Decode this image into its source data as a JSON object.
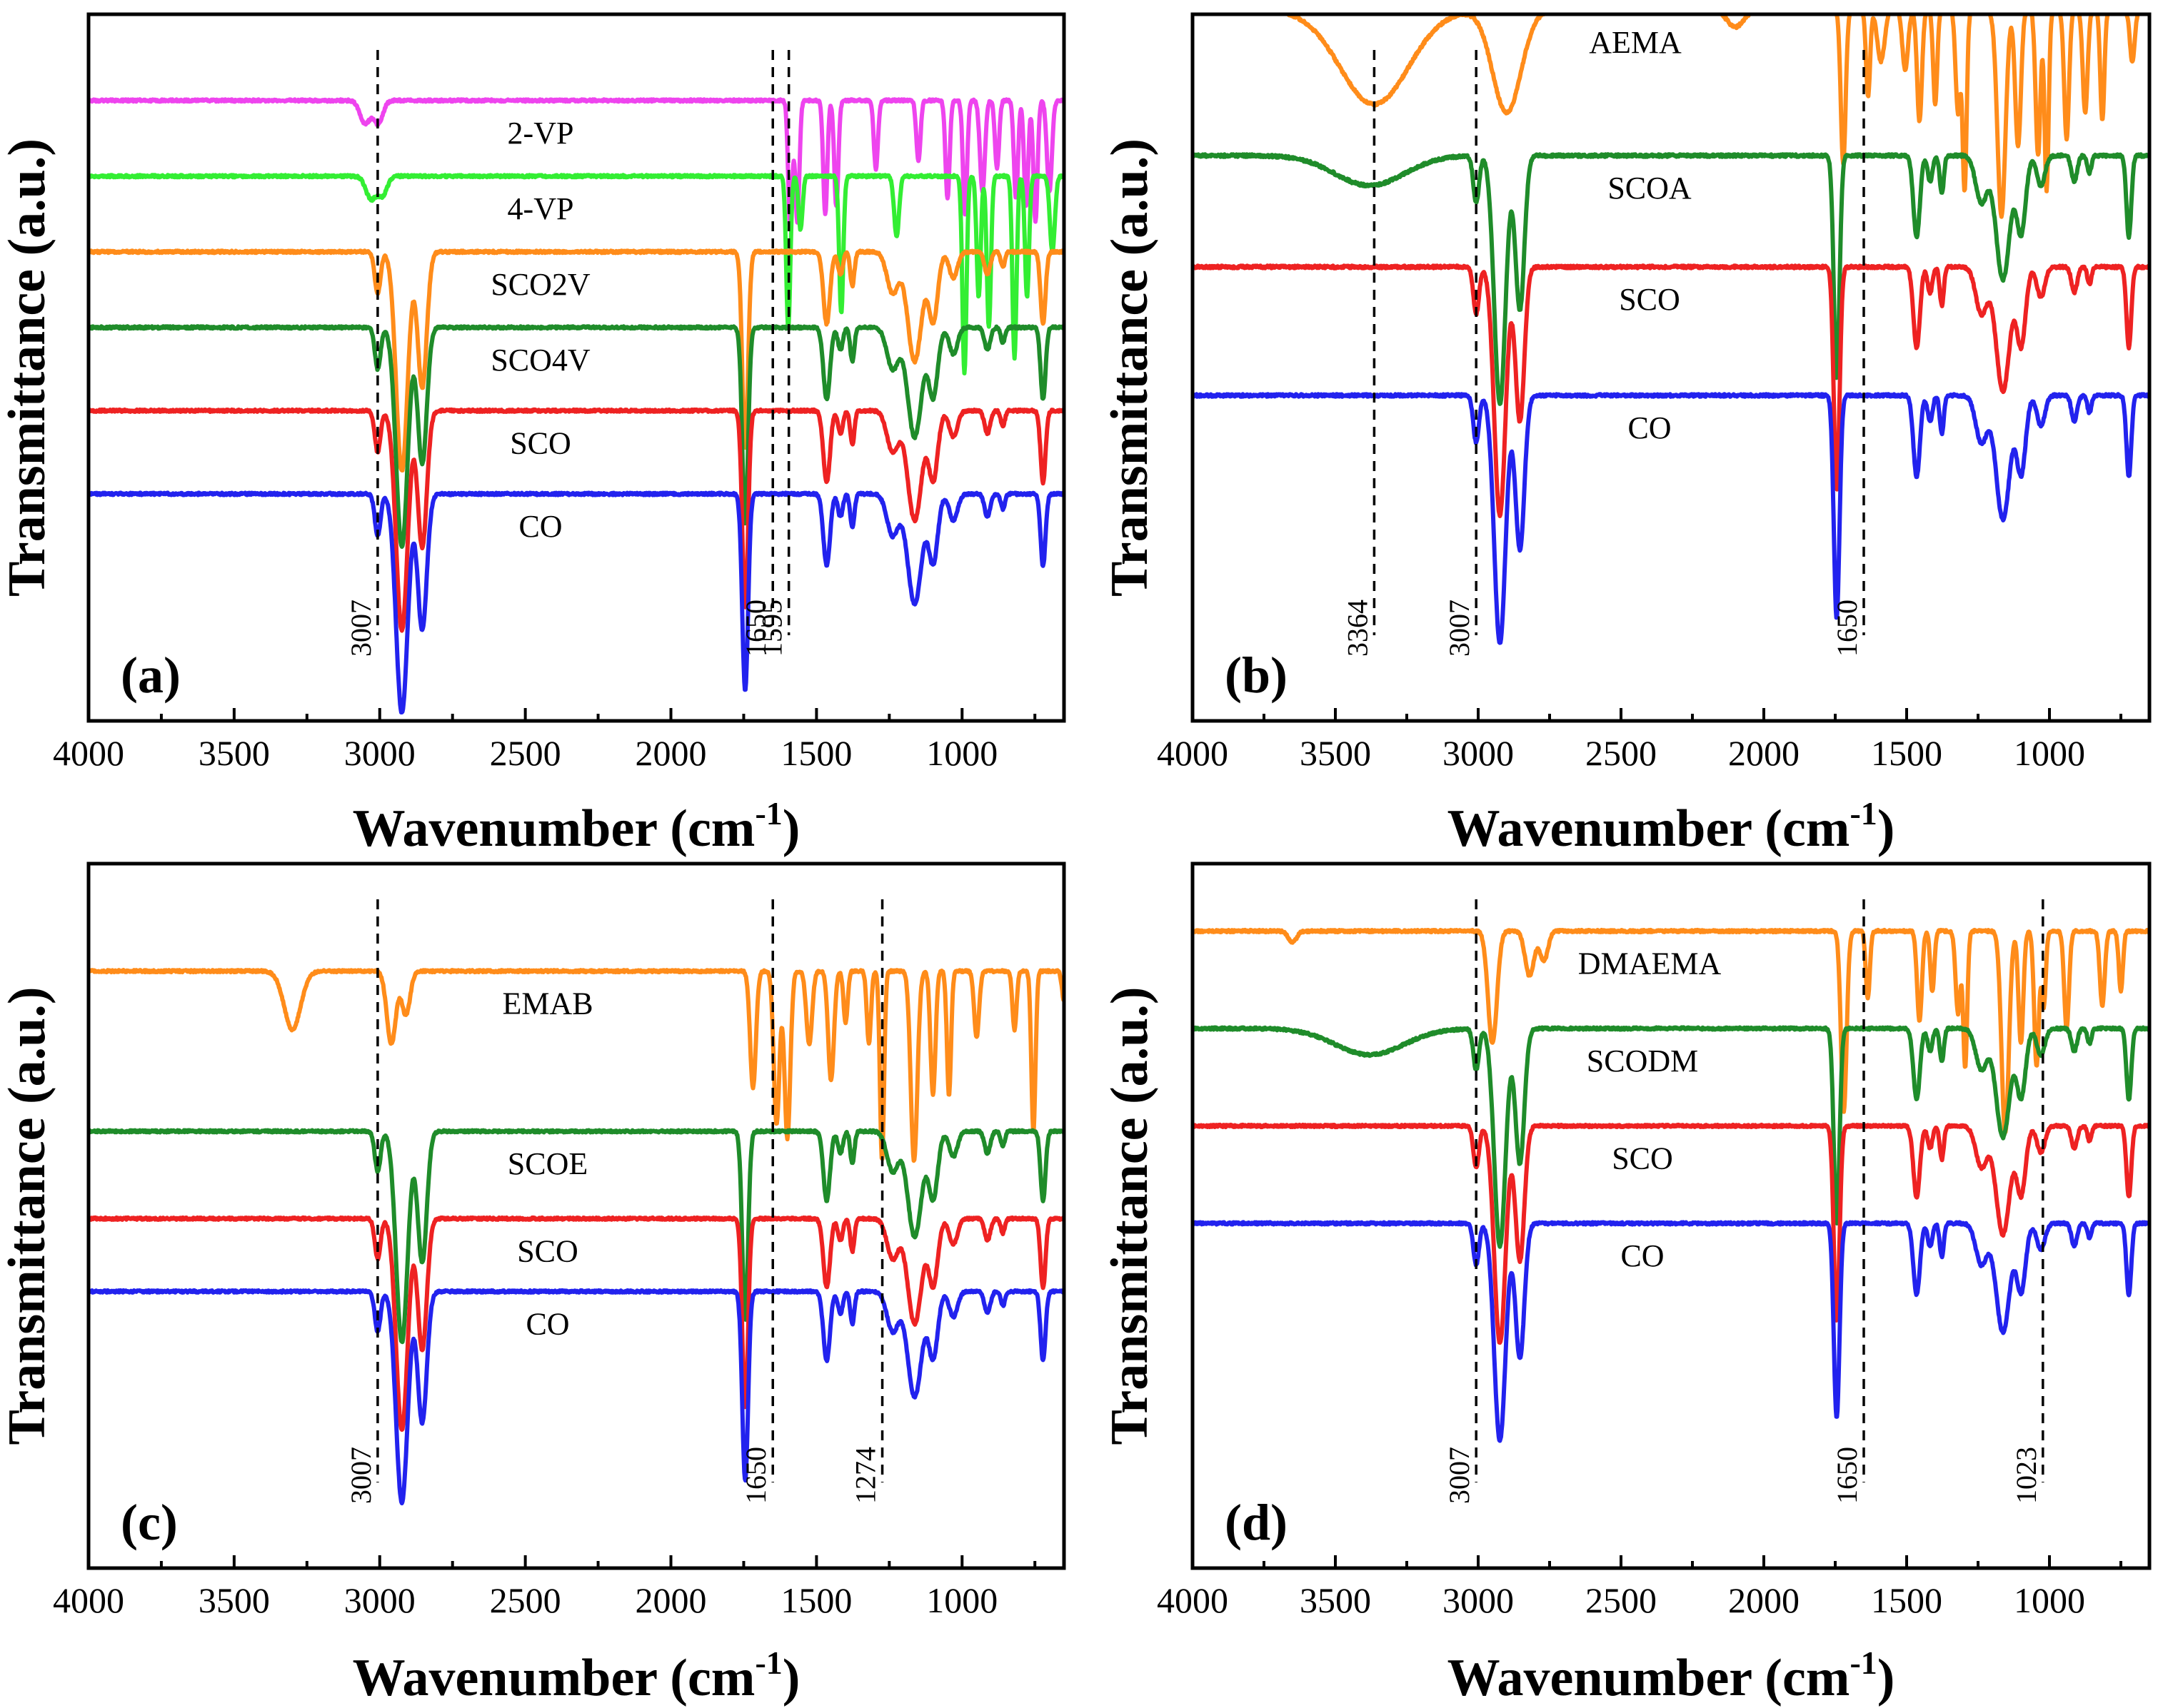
{
  "chart_data": [
    {
      "type": "line",
      "panel": "(a)",
      "xlabel": "Wavenumber (cm",
      "xlabel_sup": "-1",
      "xlabel_close": ")",
      "ylabel": "Transmittance (a.u.)",
      "xlim": [
        4000,
        650
      ],
      "xticks": [
        4000,
        3500,
        3000,
        2500,
        2000,
        1500,
        1000
      ],
      "reference_lines": [
        {
          "x": 3007,
          "label": "3007"
        },
        {
          "x": 1650,
          "label": "1650"
        },
        {
          "x": 1595,
          "label": "1595"
        }
      ],
      "series": [
        {
          "name": "2-VP",
          "color": "#ee44ee",
          "offset": 8.2,
          "profile": "vp2"
        },
        {
          "name": "4-VP",
          "color": "#33ee33",
          "offset": 7.2,
          "profile": "vp4"
        },
        {
          "name": "SCO2V",
          "color": "#ff8c1a",
          "offset": 6.2,
          "profile": "oil"
        },
        {
          "name": "SCO4V",
          "color": "#1f8c2a",
          "offset": 5.2,
          "profile": "oil"
        },
        {
          "name": "SCO",
          "color": "#ee2222",
          "offset": 4.1,
          "profile": "oil"
        },
        {
          "name": "CO",
          "color": "#2222ee",
          "offset": 3.0,
          "profile": "oil"
        }
      ]
    },
    {
      "type": "line",
      "panel": "(b)",
      "xlabel": "Wavenumber (cm",
      "xlabel_sup": "-1",
      "xlabel_close": ")",
      "ylabel": "Transmittance (a.u.)",
      "xlim": [
        4000,
        650
      ],
      "xticks": [
        4000,
        3500,
        3000,
        2500,
        2000,
        1500,
        1000
      ],
      "reference_lines": [
        {
          "x": 3364,
          "label": "3364"
        },
        {
          "x": 3007,
          "label": "3007"
        },
        {
          "x": 1650,
          "label": "1650"
        }
      ],
      "series": [
        {
          "name": "AEMA",
          "color": "#ff8c1a",
          "offset": 8.3,
          "profile": "aema"
        },
        {
          "name": "SCOA",
          "color": "#1f8c2a",
          "offset": 6.6,
          "profile": "oilOH"
        },
        {
          "name": "SCO",
          "color": "#ee2222",
          "offset": 5.3,
          "profile": "oil"
        },
        {
          "name": "CO",
          "color": "#2222ee",
          "offset": 3.8,
          "profile": "oil"
        }
      ]
    },
    {
      "type": "line",
      "panel": "(c)",
      "xlabel": "Wavenumber (cm",
      "xlabel_sup": "-1",
      "xlabel_close": ")",
      "ylabel": "Transmittance (a.u.)",
      "xlim": [
        4000,
        650
      ],
      "xticks": [
        4000,
        3500,
        3000,
        2500,
        2000,
        1500,
        1000
      ],
      "reference_lines": [
        {
          "x": 3007,
          "label": "3007"
        },
        {
          "x": 1650,
          "label": "1650"
        },
        {
          "x": 1274,
          "label": "1274"
        }
      ],
      "series": [
        {
          "name": "EMAB",
          "color": "#ff8c1a",
          "offset": 8.2,
          "profile": "emab"
        },
        {
          "name": "SCOE",
          "color": "#1f8c2a",
          "offset": 6.0,
          "profile": "oil"
        },
        {
          "name": "SCO",
          "color": "#ee2222",
          "offset": 4.8,
          "profile": "oil"
        },
        {
          "name": "CO",
          "color": "#2222ee",
          "offset": 3.8,
          "profile": "oil"
        }
      ]
    },
    {
      "type": "line",
      "panel": "(d)",
      "xlabel": "Wavenumber (cm",
      "xlabel_sup": "-1",
      "xlabel_close": ")",
      "ylabel": "Transmittance (a.u.)",
      "xlim": [
        4000,
        650
      ],
      "xticks": [
        4000,
        3500,
        3000,
        2500,
        2000,
        1500,
        1000
      ],
      "reference_lines": [
        {
          "x": 3007,
          "label": "3007"
        },
        {
          "x": 1650,
          "label": "1650"
        },
        {
          "x": 1023,
          "label": "1023"
        }
      ],
      "series": [
        {
          "name": "DMAEMA",
          "color": "#ff8c1a",
          "offset": 8.5,
          "profile": "dmaema"
        },
        {
          "name": "SCODM",
          "color": "#1f8c2a",
          "offset": 7.2,
          "profile": "oilOH"
        },
        {
          "name": "SCO",
          "color": "#ee2222",
          "offset": 5.9,
          "profile": "oil"
        },
        {
          "name": "CO",
          "color": "#2222ee",
          "offset": 4.6,
          "profile": "oil"
        }
      ]
    }
  ]
}
